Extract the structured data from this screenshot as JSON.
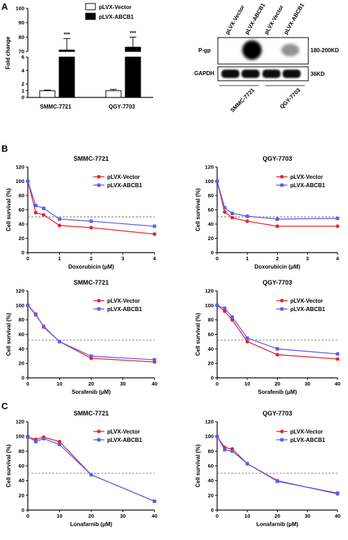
{
  "panel_labels": [
    "A",
    "B",
    "C"
  ],
  "colors": {
    "vector": "#e8202a",
    "abcb1": "#5b5bf0",
    "bar_vector": "#ffffff",
    "bar_abcb1": "#000000",
    "reference_line": "#777777"
  },
  "western_blot": {
    "lane_labels": [
      "pLVX-Vector",
      "pLVX-ABCB1",
      "pLVX-Vector",
      "pLVX-ABCB1"
    ],
    "row_labels": [
      "P-gp",
      "GAPDH"
    ],
    "size_labels": [
      "180-200KD",
      "36KD"
    ],
    "group_labels": [
      "SMMC-7721",
      "QGY-7703"
    ]
  },
  "chart_data": [
    {
      "id": "A",
      "type": "bar",
      "ylabel": "Fold change",
      "categories": [
        "SMMC-7721",
        "QGY-7703"
      ],
      "yticks": [
        0,
        1,
        2,
        4,
        6,
        70,
        80,
        90,
        100
      ],
      "series": [
        {
          "name": "pLVX-Vector",
          "values": [
            1.0,
            1.0
          ],
          "errors": [
            0.1,
            0.2
          ]
        },
        {
          "name": "pLVX-ABCB1",
          "values": [
            71,
            73
          ],
          "errors": [
            8,
            7
          ]
        }
      ],
      "annotations": [
        "***",
        "***"
      ],
      "legend_position": "top-right"
    },
    {
      "id": "B1",
      "type": "line",
      "title": "SMMC-7721",
      "xlabel": "Doxorubicin (μM)",
      "ylabel": "Cell survival (%)",
      "xlim": [
        0,
        4
      ],
      "ylim": [
        0,
        120
      ],
      "xticks": [
        0,
        1,
        2,
        3,
        4
      ],
      "yticks": [
        0,
        20,
        40,
        60,
        80,
        100,
        120
      ],
      "reference_y": 50,
      "legend_position": "top-right",
      "series": [
        {
          "name": "pLVX-Vector",
          "x": [
            0,
            0.25,
            0.5,
            1,
            2,
            4
          ],
          "y": [
            100,
            56,
            53,
            38,
            35,
            26
          ]
        },
        {
          "name": "pLVX-ABCB1",
          "x": [
            0,
            0.25,
            0.5,
            1,
            2,
            4
          ],
          "y": [
            100,
            66,
            62,
            47,
            44,
            37
          ]
        }
      ]
    },
    {
      "id": "B2",
      "type": "line",
      "title": "QGY-7703",
      "xlabel": "Doxorubicin (μM)",
      "ylabel": "Cell survival (%)",
      "xlim": [
        0,
        4
      ],
      "ylim": [
        0,
        120
      ],
      "xticks": [
        0,
        1,
        2,
        3,
        4
      ],
      "yticks": [
        0,
        20,
        40,
        60,
        80,
        100,
        120
      ],
      "reference_y": 50,
      "legend_position": "top-right",
      "series": [
        {
          "name": "pLVX-Vector",
          "x": [
            0,
            0.25,
            0.5,
            1,
            2,
            4
          ],
          "y": [
            100,
            57,
            49,
            44,
            37,
            37
          ]
        },
        {
          "name": "pLVX-ABCB1",
          "x": [
            0,
            0.25,
            0.5,
            1,
            2,
            4
          ],
          "y": [
            100,
            63,
            55,
            51,
            47,
            48
          ]
        }
      ]
    },
    {
      "id": "B3",
      "type": "line",
      "title": "SMMC-7721",
      "xlabel": "Sorafenib (μM)",
      "ylabel": "Cell survival (%)",
      "xlim": [
        0,
        40
      ],
      "ylim": [
        0,
        120
      ],
      "xticks": [
        0,
        10,
        20,
        30,
        40
      ],
      "yticks": [
        0,
        20,
        40,
        60,
        80,
        100,
        120
      ],
      "reference_y": 52,
      "legend_position": "top-right",
      "series": [
        {
          "name": "pLVX-Vector",
          "x": [
            0,
            2.5,
            5,
            10,
            20,
            40
          ],
          "y": [
            100,
            88,
            70,
            50,
            27,
            22
          ]
        },
        {
          "name": "pLVX-ABCB1",
          "x": [
            0,
            2.5,
            5,
            10,
            20,
            40
          ],
          "y": [
            100,
            87,
            71,
            50,
            30,
            25
          ]
        }
      ]
    },
    {
      "id": "B4",
      "type": "line",
      "title": "QGY-7703",
      "xlabel": "Sorafenib (μM)",
      "ylabel": "Cell survival (%)",
      "xlim": [
        0,
        40
      ],
      "ylim": [
        0,
        120
      ],
      "xticks": [
        0,
        10,
        20,
        30,
        40
      ],
      "yticks": [
        0,
        20,
        40,
        60,
        80,
        100,
        120
      ],
      "reference_y": 52,
      "legend_position": "top-right",
      "series": [
        {
          "name": "pLVX-Vector",
          "x": [
            0,
            2.5,
            5,
            10,
            20,
            40
          ],
          "y": [
            100,
            92,
            80,
            50,
            32,
            26
          ]
        },
        {
          "name": "pLVX-ABCB1",
          "x": [
            0,
            2.5,
            5,
            10,
            20,
            40
          ],
          "y": [
            100,
            96,
            84,
            55,
            40,
            33
          ]
        }
      ]
    },
    {
      "id": "C1",
      "type": "line",
      "title": "SMMC-7721",
      "xlabel": "Lonafarnib (μM)",
      "ylabel": "Cell survival (%)",
      "xlim": [
        0,
        40
      ],
      "ylim": [
        0,
        120
      ],
      "xticks": [
        0,
        10,
        20,
        30,
        40
      ],
      "yticks": [
        0,
        20,
        40,
        60,
        80,
        100,
        120
      ],
      "reference_y": 50,
      "legend_position": "top-right",
      "series": [
        {
          "name": "pLVX-Vector",
          "x": [
            0,
            2.5,
            5,
            10,
            20,
            40
          ],
          "y": [
            99,
            96,
            99,
            93,
            48,
            12
          ]
        },
        {
          "name": "pLVX-ABCB1",
          "x": [
            0,
            2.5,
            5,
            10,
            20,
            40
          ],
          "y": [
            100,
            93,
            97,
            89,
            48,
            12
          ]
        }
      ]
    },
    {
      "id": "C2",
      "type": "line",
      "title": "QGY-7703",
      "xlabel": "Lonafarnib (μM)",
      "ylabel": "Cell survival (%)",
      "xlim": [
        0,
        40
      ],
      "ylim": [
        0,
        120
      ],
      "xticks": [
        0,
        10,
        20,
        30,
        40
      ],
      "yticks": [
        0,
        20,
        40,
        60,
        80,
        100,
        120
      ],
      "reference_y": 50,
      "legend_position": "top-right",
      "series": [
        {
          "name": "pLVX-Vector",
          "x": [
            0,
            2.5,
            5,
            10,
            20,
            40
          ],
          "y": [
            100,
            85,
            83,
            63,
            40,
            22
          ]
        },
        {
          "name": "pLVX-ABCB1",
          "x": [
            0,
            2.5,
            5,
            10,
            20,
            40
          ],
          "y": [
            100,
            82,
            80,
            63,
            39,
            23
          ]
        }
      ]
    }
  ]
}
